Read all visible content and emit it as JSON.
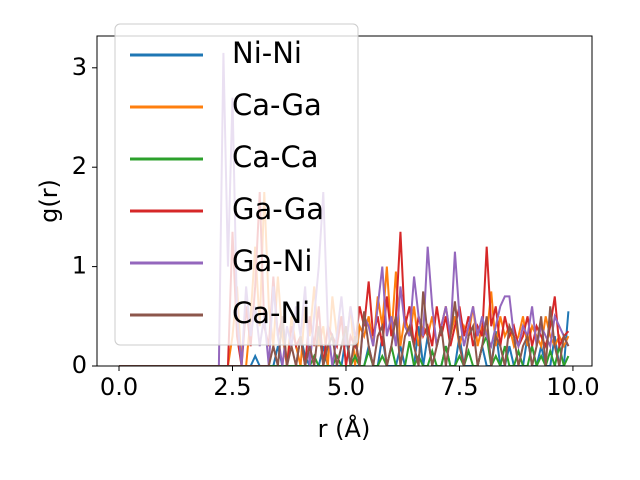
{
  "chart_data": {
    "type": "line",
    "x_label": "r (Å)",
    "y_label": "g(r)",
    "x": [
      0.0,
      0.1,
      0.2,
      0.3,
      0.4,
      0.5,
      0.6,
      0.7,
      0.8,
      0.9,
      1.0,
      1.1,
      1.2,
      1.3,
      1.4,
      1.5,
      1.6,
      1.7,
      1.8,
      1.9,
      2.0,
      2.1,
      2.2,
      2.3,
      2.4,
      2.5,
      2.6,
      2.7,
      2.8,
      2.9,
      3.0,
      3.1,
      3.2,
      3.3,
      3.4,
      3.5,
      3.6,
      3.7,
      3.8,
      3.9,
      4.0,
      4.1,
      4.2,
      4.3,
      4.4,
      4.5,
      4.6,
      4.7,
      4.8,
      4.9,
      5.0,
      5.1,
      5.2,
      5.3,
      5.4,
      5.5,
      5.6,
      5.7,
      5.8,
      5.9,
      6.0,
      6.1,
      6.2,
      6.3,
      6.4,
      6.5,
      6.6,
      6.7,
      6.8,
      6.9,
      7.0,
      7.1,
      7.2,
      7.3,
      7.4,
      7.5,
      7.6,
      7.7,
      7.8,
      7.9,
      8.0,
      8.1,
      8.2,
      8.3,
      8.4,
      8.5,
      8.6,
      8.7,
      8.8,
      8.9,
      9.0,
      9.1,
      9.2,
      9.3,
      9.4,
      9.5,
      9.6,
      9.7,
      9.8,
      9.9
    ],
    "series": [
      {
        "name": "Ni-Ni",
        "color": "#1f77b4",
        "values": [
          0,
          0,
          0,
          0,
          0,
          0,
          0,
          0,
          0,
          0,
          0,
          0,
          0,
          0,
          0,
          0,
          0,
          0,
          0,
          0,
          0,
          0,
          0,
          0,
          0,
          0,
          0,
          0,
          0,
          0,
          0.1,
          0,
          0,
          0,
          0,
          0.2,
          0,
          0,
          0,
          0,
          0.3,
          0.1,
          0,
          0,
          0,
          0.2,
          0,
          0,
          0,
          0,
          0.3,
          0,
          0,
          0,
          0,
          0.2,
          0,
          0,
          0.3,
          0,
          0,
          0,
          0.2,
          0,
          0,
          0,
          0.4,
          0,
          0.3,
          0,
          0,
          0,
          0.2,
          0,
          0,
          0.3,
          0,
          0,
          0,
          0,
          0.2,
          0,
          0,
          0.35,
          0,
          0,
          0.2,
          0,
          0,
          0,
          0.3,
          0,
          0,
          0.2,
          0,
          0,
          0.3,
          0,
          0,
          0.55
        ]
      },
      {
        "name": "Ca-Ga",
        "color": "#ff7f0e",
        "values": [
          0,
          0,
          0,
          0,
          0,
          0,
          0,
          0,
          0,
          0,
          0,
          0,
          0,
          0,
          0,
          0,
          0,
          0,
          0,
          0,
          0,
          0,
          0,
          0,
          0,
          0.3,
          0.8,
          0,
          0,
          0.5,
          1.2,
          0.4,
          1.75,
          0.6,
          0.2,
          0.9,
          0.3,
          0,
          0.5,
          0.2,
          0,
          0.6,
          0.3,
          0.8,
          0.2,
          0.4,
          0,
          0.7,
          0.3,
          0.5,
          0.2,
          0.6,
          0,
          0.4,
          0.3,
          0.5,
          0.2,
          0.7,
          0.4,
          1.0,
          0.3,
          0.95,
          0.2,
          0.5,
          0.3,
          0.6,
          0.2,
          0.4,
          0.3,
          0.5,
          0.2,
          0.4,
          0.6,
          0.3,
          0.5,
          0.2,
          0.4,
          0.3,
          0.6,
          0.2,
          0.4,
          0.3,
          0.75,
          0.2,
          0.5,
          0.3,
          0.4,
          0.2,
          0.3,
          0.5,
          0.2,
          0.4,
          0.3,
          0.2,
          0.5,
          0.3,
          0.2,
          0.3,
          0.2,
          0.3
        ]
      },
      {
        "name": "Ca-Ca",
        "color": "#2ca02c",
        "values": [
          0,
          0,
          0,
          0,
          0,
          0,
          0,
          0,
          0,
          0,
          0,
          0,
          0,
          0,
          0,
          0,
          0,
          0,
          0,
          0,
          0,
          0,
          0,
          0,
          0,
          0,
          0,
          0,
          0,
          0,
          0,
          0,
          0,
          0,
          0,
          0,
          0,
          0,
          0,
          0,
          0,
          0,
          0,
          0.1,
          0,
          0,
          0,
          0,
          0.1,
          0,
          0,
          0,
          0.1,
          0,
          0,
          0.15,
          0,
          0,
          0.1,
          0,
          0.2,
          0,
          0,
          0,
          0.25,
          0,
          0.1,
          0,
          0,
          0.15,
          0,
          0,
          0.2,
          0,
          0,
          0.1,
          0,
          0.15,
          0,
          0,
          0.2,
          0.3,
          0,
          0.1,
          0,
          0.2,
          0,
          0,
          0.15,
          0,
          0,
          0.2,
          0,
          0.1,
          0,
          0.15,
          0,
          0.2,
          0,
          0.1
        ]
      },
      {
        "name": "Ga-Ga",
        "color": "#d62728",
        "values": [
          0,
          0,
          0,
          0,
          0,
          0,
          0,
          0,
          0,
          0,
          0,
          0,
          0,
          0,
          0,
          0,
          0,
          0,
          0,
          0,
          0,
          0,
          0,
          0,
          0,
          1.35,
          0.3,
          0,
          0.6,
          0.2,
          0.8,
          1.75,
          0.4,
          0.2,
          0.9,
          0.3,
          0.5,
          0,
          0.4,
          0.2,
          0.3,
          0,
          0.5,
          0.2,
          0.6,
          0,
          0.4,
          0.3,
          0.2,
          0.5,
          0,
          0.3,
          0.2,
          0.6,
          0.4,
          0.85,
          0.3,
          0.5,
          0.2,
          0.7,
          0.3,
          0.5,
          1.35,
          0.4,
          0.6,
          0.2,
          0.5,
          0.3,
          0.4,
          0.2,
          0.6,
          0.3,
          0.5,
          0.2,
          0.4,
          0.6,
          0.3,
          0.5,
          0.2,
          0.4,
          0.3,
          1.2,
          0.4,
          0.6,
          0.2,
          0.5,
          0.3,
          0.4,
          0.2,
          0.3,
          0.5,
          0.2,
          0.4,
          0.3,
          0.2,
          0.4,
          0.7,
          0.2,
          0.3,
          0.35
        ]
      },
      {
        "name": "Ga-Ni",
        "color": "#9467bd",
        "values": [
          0,
          0,
          0,
          0,
          0,
          0,
          0,
          0,
          0,
          0,
          0,
          0,
          0,
          0,
          0,
          0,
          0,
          0,
          0,
          0,
          0,
          0,
          0,
          3.15,
          1.0,
          2.7,
          0.5,
          0,
          0.8,
          0.3,
          0.6,
          0.2,
          0.5,
          0,
          0.8,
          0.3,
          0,
          0.4,
          0.2,
          0.6,
          0.3,
          0.8,
          0,
          0.5,
          1.0,
          1.75,
          0.4,
          0,
          0.3,
          0.7,
          0.2,
          0.6,
          0.3,
          0,
          0.5,
          0.4,
          0.2,
          0.6,
          1.0,
          0.3,
          0.5,
          0.2,
          0.8,
          0.4,
          0.3,
          0.9,
          0.5,
          0.3,
          1.2,
          0.6,
          0.2,
          0.4,
          0.6,
          0.3,
          1.15,
          0.5,
          0.2,
          0.4,
          0.6,
          0.3,
          0.5,
          0.3,
          0.2,
          0.4,
          0.6,
          0.7,
          0.7,
          0.3,
          0.2,
          0.4,
          0.3,
          0.6,
          0.2,
          0.4,
          0.3,
          0.2,
          0.5,
          0.4,
          0.3,
          0.2
        ]
      },
      {
        "name": "Ca-Ni",
        "color": "#8c564b",
        "values": [
          0,
          0,
          0,
          0,
          0,
          0,
          0,
          0,
          0,
          0,
          0,
          0,
          0,
          0,
          0,
          0,
          0,
          0,
          0,
          0,
          0,
          0,
          0,
          0,
          0,
          0,
          0,
          0,
          0,
          0,
          0,
          0,
          0,
          0,
          0.2,
          0,
          0.5,
          0,
          0.2,
          0,
          0.3,
          0,
          0.2,
          0,
          0.4,
          0,
          0.2,
          0.3,
          0,
          0.2,
          0.4,
          0,
          0.3,
          0,
          0.55,
          0.2,
          0,
          0.3,
          0.4,
          0,
          0.2,
          0.5,
          0,
          0.3,
          0.4,
          0.2,
          0,
          0.75,
          0.3,
          0,
          0.2,
          0.4,
          0,
          0.3,
          0.65,
          0.2,
          0,
          0.3,
          0.4,
          0,
          0.2,
          0.5,
          0,
          0.3,
          0.2,
          0,
          0.4,
          0.3,
          0,
          0.2,
          0.3,
          0,
          0.2,
          0.5,
          0,
          0.6,
          0.2,
          0,
          0.3,
          0.2
        ]
      }
    ],
    "xlim": [
      -0.485,
      10.42
    ],
    "ylim": [
      0,
      3.32
    ],
    "xticks": [
      {
        "value": 0,
        "label": "0.0"
      },
      2.5,
      {
        "value": 5,
        "label": "5.0"
      },
      7.5,
      {
        "value": 10,
        "label": "10.0"
      }
    ],
    "yticks": [
      0,
      1,
      2,
      3
    ],
    "legend": "upper left"
  }
}
